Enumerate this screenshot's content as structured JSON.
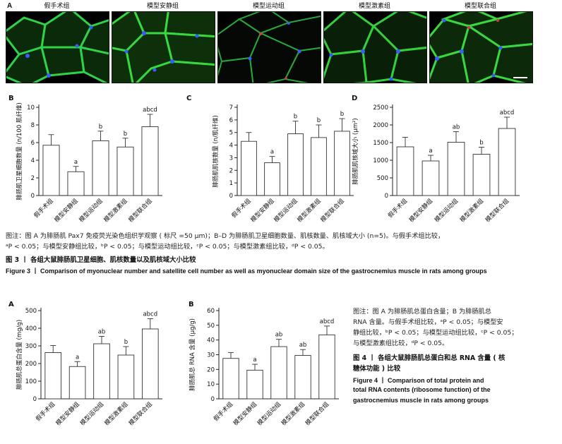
{
  "figure3": {
    "panel_a_letter": "A",
    "micrographs": [
      {
        "label": "假手术组"
      },
      {
        "label": "模型安静组"
      },
      {
        "label": "模型运动组"
      },
      {
        "label": "模型激素组"
      },
      {
        "label": "模型联合组"
      }
    ],
    "caption_line1": "图注：图 A 为腓肠肌 Pax7 免疫荧光染色组织学观察 ( 标尺 =50 μm)；B–D 为腓肠肌卫星细胞数量、肌核数量、肌核域大小 (n=5)。与假手术组比较，",
    "caption_line2": "ᵃP < 0.05；与模型安静组比较，ᵇP < 0.05；与模型运动组比较，ᶜP < 0.05；与模型激素组比较，ᵈP < 0.05。",
    "title_zh": "图 3 丨 各组大鼠腓肠肌卫星细胞、肌核数量以及肌核域大小比较",
    "title_en": "Figure 3 丨 Comparison of myonuclear number and satellite cell number as well as myonuclear domain size of the gastrocnemius muscle in rats among groups"
  },
  "figure4": {
    "caption_lines": [
      "图注：图 A 为腓肠肌总蛋白含量；B 为腓肠肌总",
      "RNA 含量。与假手术组比较，ᵃP < 0.05；与模型安",
      "静组比较，ᵇP < 0.05；与模型运动组比较，ᶜP < 0.05；",
      "与模型激素组比较，ᵈP < 0.05。"
    ],
    "title_zh_lines": [
      "图 4 丨 各组大鼠腓肠肌总蛋白和总 RNA 含量 ( 核",
      "糖体功能 ) 比较"
    ],
    "title_en_lines": [
      "Figure 4 丨 Comparison of total protein and",
      "total RNA contents (ribosome function) of the",
      "gastrocnemius muscle in rats among groups"
    ]
  },
  "chart_data": [
    {
      "id": "3B",
      "letter": "B",
      "type": "bar",
      "categories": [
        "假手术组",
        "模型安静组",
        "模型运动组",
        "模型激素组",
        "模型联合组"
      ],
      "values": [
        5.7,
        2.7,
        6.2,
        5.5,
        7.8
      ],
      "errors": [
        1.2,
        0.6,
        1.1,
        1.0,
        1.4
      ],
      "letters": [
        "",
        "a",
        "b",
        "b",
        "abcd"
      ],
      "ylabel": "腓肠肌卫星细胞数量 (n/100 肌纤维)",
      "ylim": [
        0,
        10
      ],
      "yticks": [
        0,
        2,
        4,
        6,
        8,
        10
      ]
    },
    {
      "id": "3C",
      "letter": "C",
      "type": "bar",
      "categories": [
        "假手术组",
        "模型安静组",
        "模型运动组",
        "模型激素组",
        "模型联合组"
      ],
      "values": [
        4.3,
        2.6,
        4.9,
        4.6,
        5.1
      ],
      "errors": [
        0.7,
        0.5,
        1.0,
        1.0,
        1.0
      ],
      "letters": [
        "",
        "a",
        "b",
        "b",
        "b"
      ],
      "ylabel": "腓肠肌肌核数量 (n/肌纤维)",
      "ylim": [
        0,
        7
      ],
      "yticks": [
        0,
        1,
        2,
        3,
        4,
        5,
        6,
        7
      ]
    },
    {
      "id": "3D",
      "letter": "D",
      "type": "bar",
      "categories": [
        "假手术组",
        "模型安静组",
        "模型运动组",
        "模型激素组",
        "模型联合组"
      ],
      "values": [
        1380,
        980,
        1510,
        1170,
        1900
      ],
      "errors": [
        270,
        160,
        300,
        200,
        320
      ],
      "letters": [
        "",
        "a",
        "ab",
        "b",
        "abcd"
      ],
      "ylabel": "腓肠肌肌核域大小 (μm²)",
      "ylim": [
        0,
        2500
      ],
      "yticks": [
        0,
        500,
        1000,
        1500,
        2000,
        2500
      ]
    },
    {
      "id": "4A",
      "letter": "A",
      "type": "bar",
      "categories": [
        "假手术组",
        "模型安静组",
        "模型运动组",
        "模型激素组",
        "模型联合组"
      ],
      "values": [
        262,
        183,
        312,
        248,
        396
      ],
      "errors": [
        40,
        28,
        42,
        48,
        58
      ],
      "letters": [
        "",
        "a",
        "ab",
        "b",
        "abcd"
      ],
      "ylabel": "腓肠肌总蛋白含量 (mg/g)",
      "ylim": [
        0,
        500
      ],
      "yticks": [
        0,
        100,
        200,
        300,
        400,
        500
      ]
    },
    {
      "id": "4B",
      "letter": "B",
      "type": "bar",
      "categories": [
        "假手术组",
        "模型安静组",
        "模型运动组",
        "模型激素组",
        "模型联合组"
      ],
      "values": [
        27.5,
        19.5,
        35.5,
        29.5,
        43.5
      ],
      "errors": [
        4.0,
        4.0,
        5.0,
        4.0,
        6.0
      ],
      "letters": [
        "",
        "a",
        "ab",
        "ab",
        "abcd"
      ],
      "ylabel": "腓肠肌总 RNA 含量 (μg/g)",
      "ylim": [
        0,
        60
      ],
      "yticks": [
        0,
        10,
        20,
        30,
        40,
        50,
        60
      ]
    }
  ]
}
